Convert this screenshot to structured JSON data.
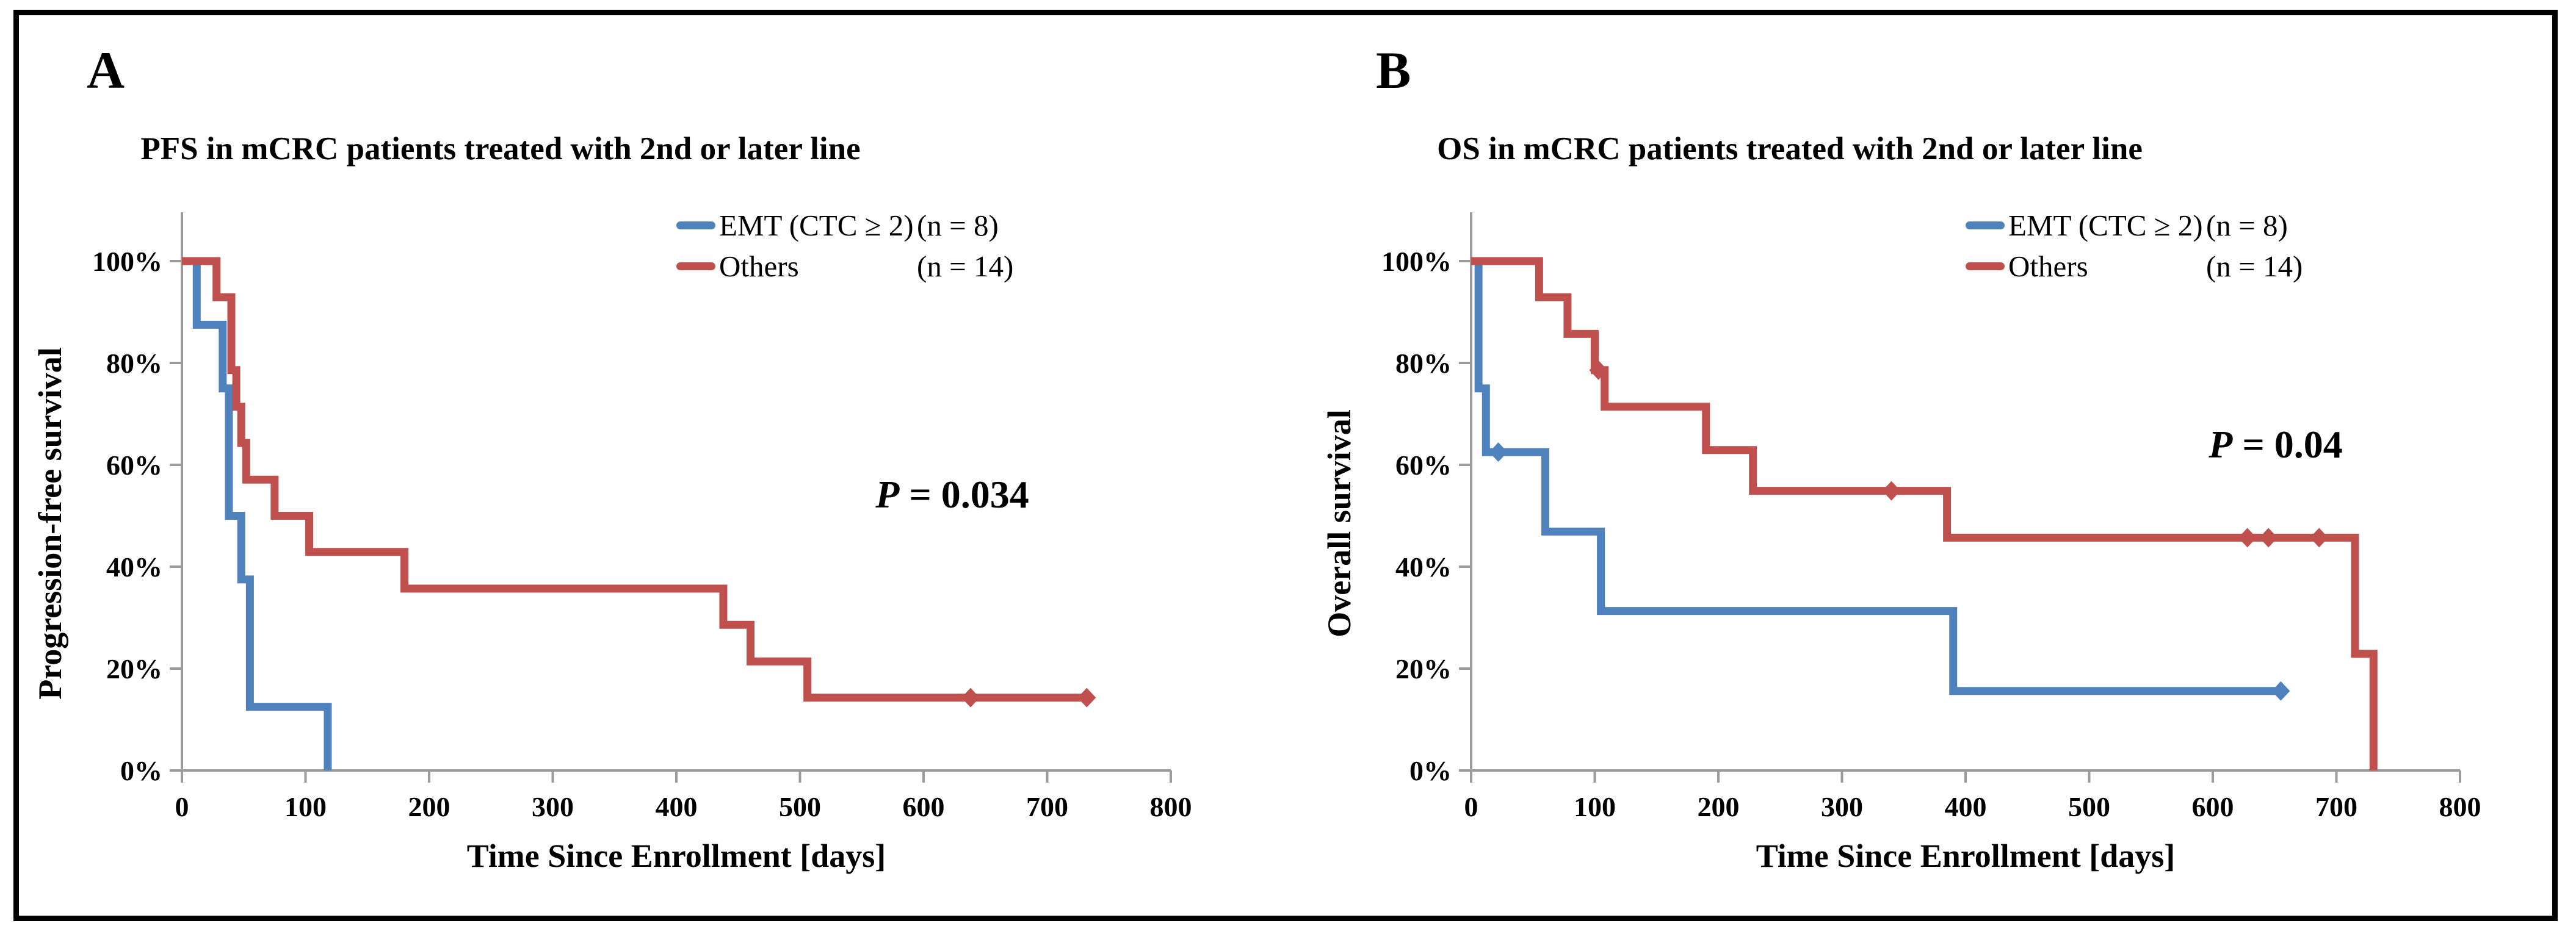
{
  "figure": {
    "background": "#ffffff",
    "border_color": "#000000",
    "axis_color": "#9b9b9b",
    "accent_blue": "#4F81BD",
    "accent_red": "#C0504D"
  },
  "panels": [
    {
      "letter": "A",
      "title": "PFS in mCRC patients treated with 2nd or later line",
      "y_axis_title": "Progression-free survival",
      "x_axis_title": "Time Since Enrollment [days]",
      "p_label": "P",
      "p_value": " = 0.034"
    },
    {
      "letter": "B",
      "title": "OS in mCRC patients treated with 2nd or later line",
      "y_axis_title": "Overall survival",
      "x_axis_title": "Time Since Enrollment [days]",
      "p_label": "P",
      "p_value": " = 0.04"
    }
  ],
  "chart_data": [
    {
      "type": "line",
      "subtype": "kaplan-meier-step",
      "title": "PFS in mCRC patients treated with 2nd or later line",
      "xlabel": "Time Since Enrollment [days]",
      "ylabel": "Progression-free survival",
      "xlim": [
        0,
        800
      ],
      "ylim": [
        0,
        100
      ],
      "x_ticks": [
        0,
        100,
        200,
        300,
        400,
        500,
        600,
        700,
        800
      ],
      "y_ticks": [
        0,
        20,
        40,
        60,
        80,
        100
      ],
      "y_tick_suffix": "%",
      "grid": false,
      "legend_position": "top-right",
      "p_text": "P = 0.034",
      "series": [
        {
          "name": "EMT (CTC ≥ 2)",
          "n": "(n = 8)",
          "color": "#4F81BD",
          "points": [
            [
              0,
              100
            ],
            [
              12,
              100
            ],
            [
              12,
              87.5
            ],
            [
              33,
              87.5
            ],
            [
              33,
              75
            ],
            [
              38,
              75
            ],
            [
              38,
              50
            ],
            [
              48,
              50
            ],
            [
              48,
              37.5
            ],
            [
              55,
              37.5
            ],
            [
              55,
              12.5
            ],
            [
              118,
              12.5
            ],
            [
              118,
              0
            ]
          ],
          "censors": []
        },
        {
          "name": "Others",
          "n": "(n = 14)",
          "color": "#C0504D",
          "points": [
            [
              0,
              100
            ],
            [
              28,
              100
            ],
            [
              28,
              92.9
            ],
            [
              40,
              92.9
            ],
            [
              40,
              78.6
            ],
            [
              44,
              78.6
            ],
            [
              44,
              71.4
            ],
            [
              48,
              71.4
            ],
            [
              48,
              64.3
            ],
            [
              52,
              64.3
            ],
            [
              52,
              57.1
            ],
            [
              75,
              57.1
            ],
            [
              75,
              50
            ],
            [
              103,
              50
            ],
            [
              103,
              42.9
            ],
            [
              180,
              42.9
            ],
            [
              180,
              35.7
            ],
            [
              438,
              35.7
            ],
            [
              438,
              28.6
            ],
            [
              460,
              28.6
            ],
            [
              460,
              21.4
            ],
            [
              506,
              21.4
            ],
            [
              506,
              14.3
            ],
            [
              732,
              14.3
            ]
          ],
          "censors": [
            [
              638,
              14.3
            ],
            [
              732,
              14.3
            ]
          ]
        }
      ]
    },
    {
      "type": "line",
      "subtype": "kaplan-meier-step",
      "title": "OS in mCRC patients treated with 2nd or later line",
      "xlabel": "Time Since Enrollment [days]",
      "ylabel": "Overall survival",
      "xlim": [
        0,
        800
      ],
      "ylim": [
        0,
        100
      ],
      "x_ticks": [
        0,
        100,
        200,
        300,
        400,
        500,
        600,
        700,
        800
      ],
      "y_ticks": [
        0,
        20,
        40,
        60,
        80,
        100
      ],
      "y_tick_suffix": "%",
      "grid": false,
      "legend_position": "top-right",
      "p_text": "P = 0.04",
      "series": [
        {
          "name": "EMT (CTC ≥ 2)",
          "n": "(n = 8)",
          "color": "#4F81BD",
          "points": [
            [
              0,
              100
            ],
            [
              6,
              100
            ],
            [
              6,
              75
            ],
            [
              12,
              75
            ],
            [
              12,
              62.5
            ],
            [
              60,
              62.5
            ],
            [
              60,
              46.9
            ],
            [
              105,
              46.9
            ],
            [
              105,
              31.3
            ],
            [
              390,
              31.3
            ],
            [
              390,
              15.6
            ],
            [
              655,
              15.6
            ]
          ],
          "censors": [
            [
              22,
              62.5
            ],
            [
              655,
              15.6
            ]
          ]
        },
        {
          "name": "Others",
          "n": "(n = 14)",
          "color": "#C0504D",
          "points": [
            [
              0,
              100
            ],
            [
              55,
              100
            ],
            [
              55,
              92.9
            ],
            [
              78,
              92.9
            ],
            [
              78,
              85.7
            ],
            [
              100,
              85.7
            ],
            [
              100,
              78.6
            ],
            [
              108,
              78.6
            ],
            [
              108,
              71.4
            ],
            [
              190,
              71.4
            ],
            [
              190,
              62.9
            ],
            [
              228,
              62.9
            ],
            [
              228,
              54.9
            ],
            [
              385,
              54.9
            ],
            [
              385,
              45.7
            ],
            [
              715,
              45.7
            ],
            [
              715,
              22.9
            ],
            [
              730,
              22.9
            ],
            [
              730,
              0
            ]
          ],
          "censors": [
            [
              103,
              78.6
            ],
            [
              340,
              54.9
            ],
            [
              628,
              45.7
            ],
            [
              645,
              45.7
            ],
            [
              686,
              45.7
            ]
          ]
        }
      ]
    }
  ]
}
